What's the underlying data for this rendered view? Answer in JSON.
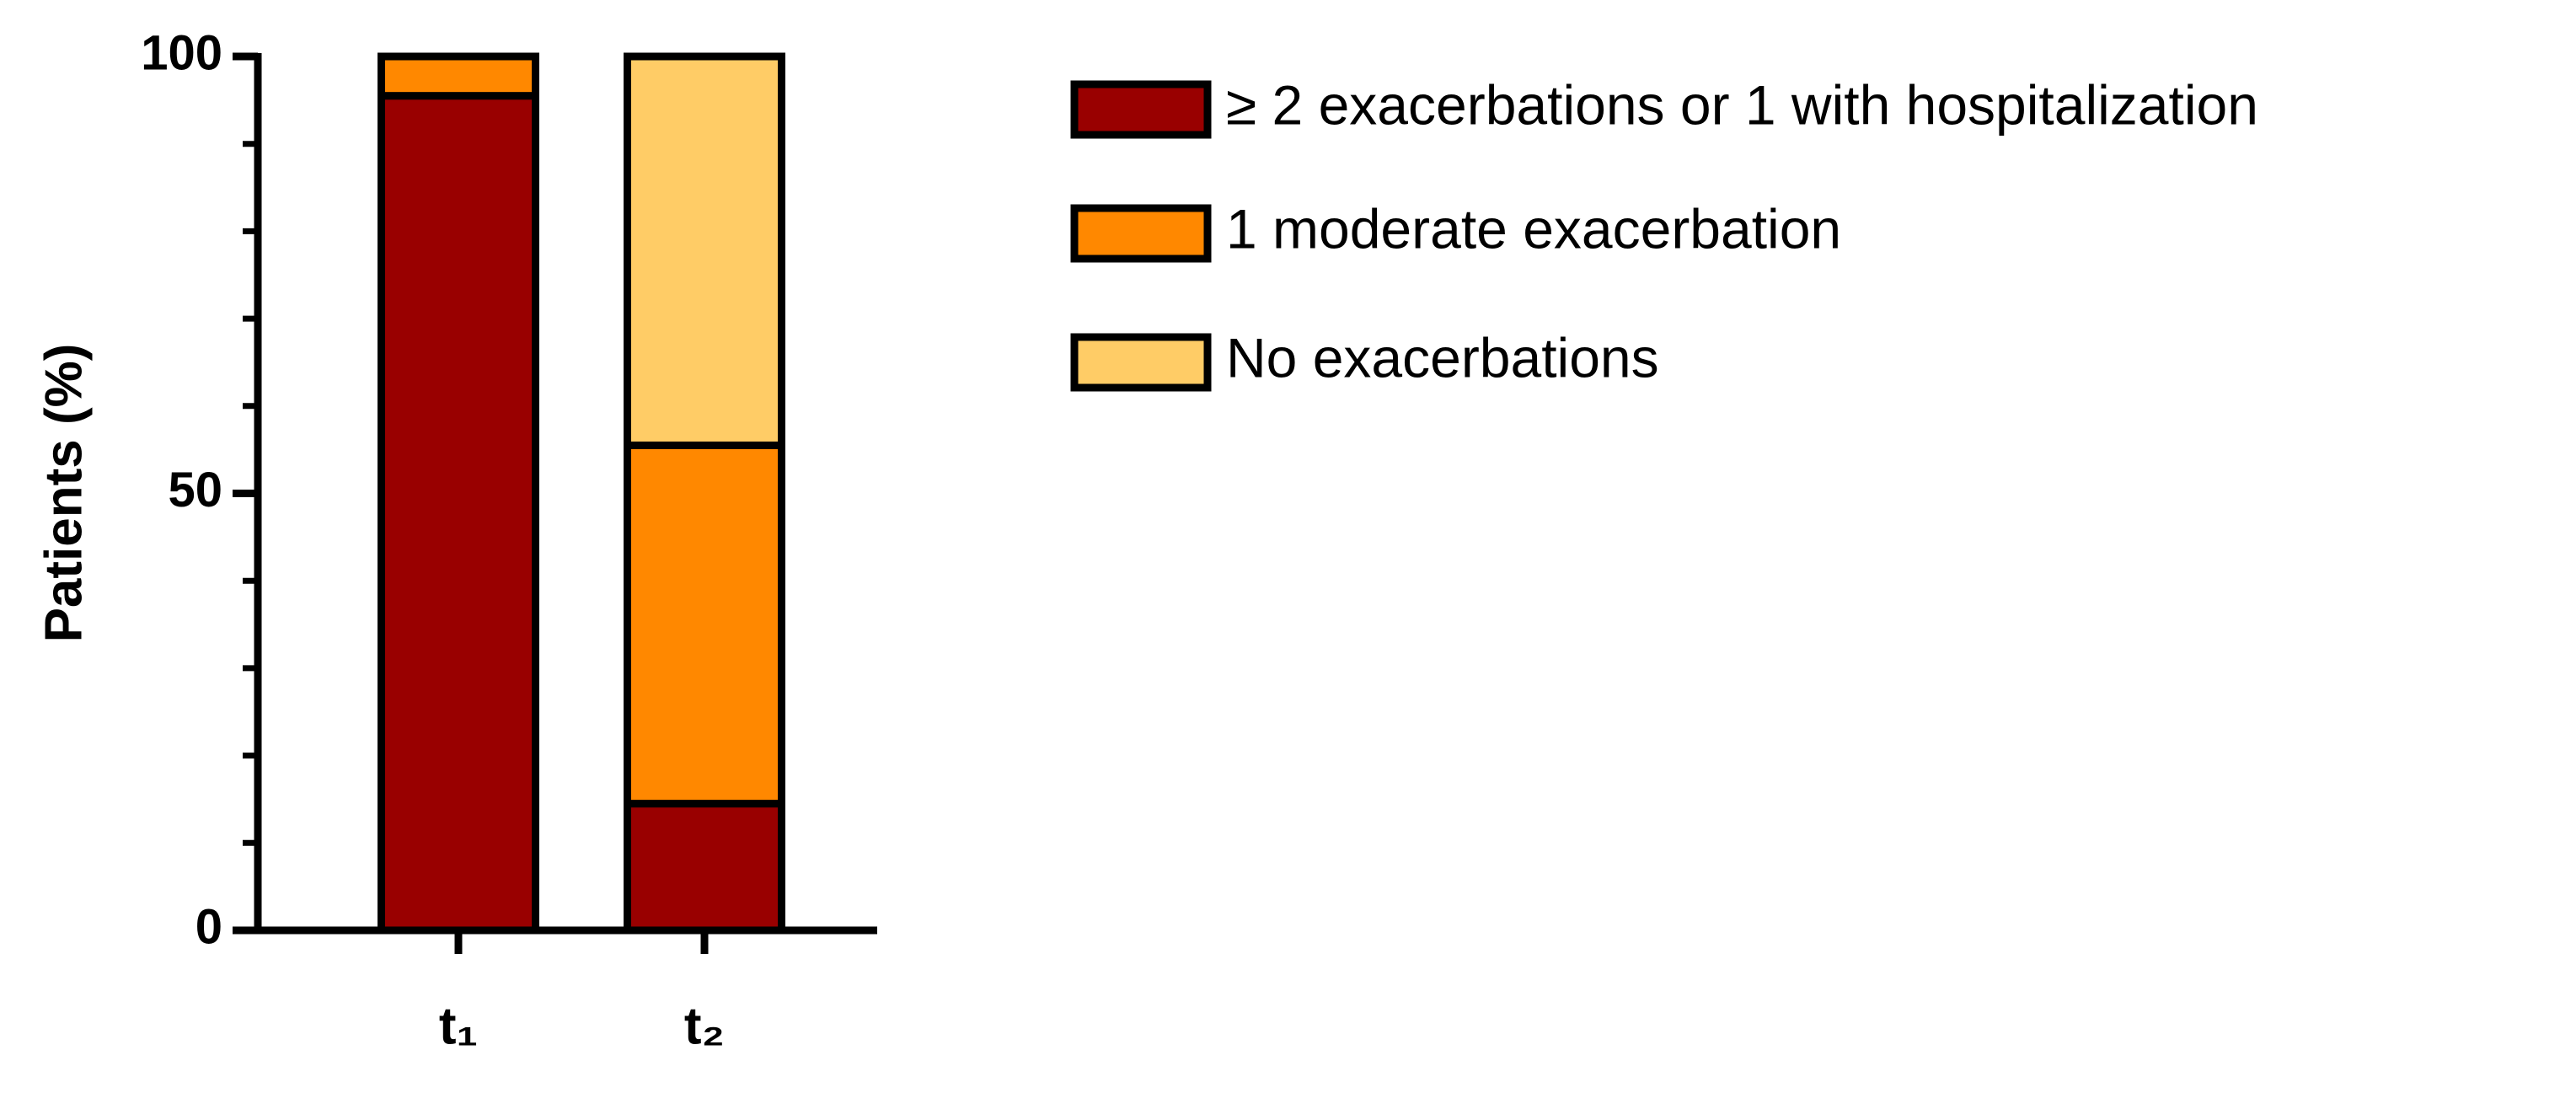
{
  "chart_data": {
    "type": "stacked_bar",
    "ylabel": "Patients (%)",
    "categories": [
      "t₁",
      "t₂"
    ],
    "series": [
      {
        "name": "≥ 2 exacerbations or 1 with hospitalization",
        "color": "#990000",
        "values": [
          95.5,
          14.5
        ]
      },
      {
        "name": "1 moderate exacerbation",
        "color": "#ff8800",
        "values": [
          4.5,
          41
        ]
      },
      {
        "name": "No exacerbations",
        "color": "#ffcc66",
        "values": [
          0,
          44.5
        ]
      }
    ],
    "ylim": [
      0,
      100
    ],
    "yticks": [
      0,
      50,
      100
    ],
    "yminorticks": [
      10,
      20,
      30,
      40,
      60,
      70,
      80,
      90
    ],
    "legend": "right"
  }
}
